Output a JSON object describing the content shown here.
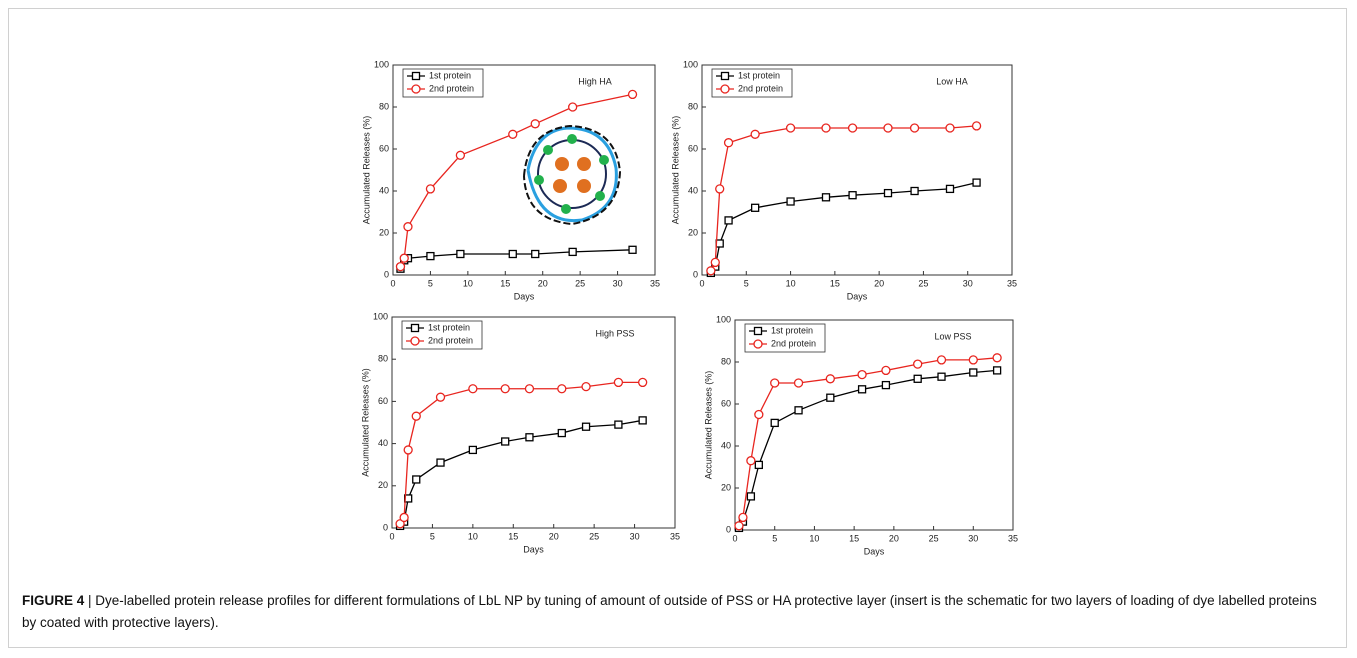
{
  "figure": {
    "label": "FIGURE 4",
    "caption": "| Dye-labelled protein release profiles for different formulations of LbL NP by tuning of amount of outside of PSS or HA protective layer (insert is the schematic for two layers of loading of dye labelled proteins by coated with protective layers).",
    "chart_data": [
      {
        "type": "line",
        "title": "High HA",
        "x_label": "Days",
        "y_label": "Accumulated Releases (%)",
        "x": [
          1,
          1.5,
          2,
          5,
          9,
          16,
          19,
          24,
          32
        ],
        "series": [
          {
            "name": "1st protein",
            "color": "#000000",
            "marker": "square",
            "values": [
              3,
              7,
              8,
              9,
              10,
              10,
              10,
              11,
              12
            ]
          },
          {
            "name": "2nd protein",
            "color": "#e8251f",
            "marker": "circle",
            "values": [
              4,
              8,
              23,
              41,
              57,
              67,
              72,
              80,
              86
            ]
          }
        ],
        "xlim": [
          0,
          35
        ],
        "xticks": [
          0,
          5,
          10,
          15,
          20,
          25,
          30,
          35
        ],
        "ylim": [
          0,
          100
        ],
        "yticks": [
          0,
          20,
          40,
          60,
          80,
          100
        ]
      },
      {
        "type": "line",
        "title": "Low HA",
        "x_label": "Days",
        "y_label": "Accumulated Releases (%)",
        "x": [
          1,
          1.5,
          2,
          3,
          6,
          10,
          14,
          17,
          21,
          24,
          28,
          31
        ],
        "series": [
          {
            "name": "1st protein",
            "color": "#000000",
            "marker": "square",
            "values": [
              1,
              4,
              15,
              26,
              32,
              35,
              37,
              38,
              39,
              40,
              41,
              44
            ]
          },
          {
            "name": "2nd protein",
            "color": "#e8251f",
            "marker": "circle",
            "values": [
              2,
              6,
              41,
              63,
              67,
              70,
              70,
              70,
              70,
              70,
              70,
              71
            ]
          }
        ],
        "xlim": [
          0,
          35
        ],
        "xticks": [
          0,
          5,
          10,
          15,
          20,
          25,
          30,
          35
        ],
        "ylim": [
          0,
          100
        ],
        "yticks": [
          0,
          20,
          40,
          60,
          80,
          100
        ]
      },
      {
        "type": "line",
        "title": "High PSS",
        "x_label": "Days",
        "y_label": "Accumulated Releases (%)",
        "x": [
          1,
          1.5,
          2,
          3,
          6,
          10,
          14,
          17,
          21,
          24,
          28,
          31
        ],
        "series": [
          {
            "name": "1st protein",
            "color": "#000000",
            "marker": "square",
            "values": [
              1,
              3,
              14,
              23,
              31,
              37,
              41,
              43,
              45,
              48,
              49,
              51
            ]
          },
          {
            "name": "2nd protein",
            "color": "#e8251f",
            "marker": "circle",
            "values": [
              2,
              5,
              37,
              53,
              62,
              66,
              66,
              66,
              66,
              67,
              69,
              69
            ]
          }
        ],
        "xlim": [
          0,
          35
        ],
        "xticks": [
          0,
          5,
          10,
          15,
          20,
          25,
          30,
          35
        ],
        "ylim": [
          0,
          100
        ],
        "yticks": [
          0,
          20,
          40,
          60,
          80,
          100
        ]
      },
      {
        "type": "line",
        "title": "Low PSS",
        "x_label": "Days",
        "y_label": "Accumulated Releases (%)",
        "x": [
          0.5,
          1,
          2,
          3,
          5,
          8,
          12,
          16,
          19,
          23,
          26,
          30,
          33
        ],
        "series": [
          {
            "name": "1st protein",
            "color": "#000000",
            "marker": "square",
            "values": [
              1,
              4,
              16,
              31,
              51,
              57,
              63,
              67,
              69,
              72,
              73,
              75,
              76
            ]
          },
          {
            "name": "2nd protein",
            "color": "#e8251f",
            "marker": "circle",
            "values": [
              2,
              6,
              33,
              55,
              70,
              70,
              72,
              74,
              76,
              79,
              81,
              81,
              82
            ]
          }
        ],
        "xlim": [
          0,
          35
        ],
        "xticks": [
          0,
          5,
          10,
          15,
          20,
          25,
          30,
          35
        ],
        "ylim": [
          0,
          100
        ],
        "yticks": [
          0,
          20,
          40,
          60,
          80,
          100
        ]
      }
    ]
  }
}
